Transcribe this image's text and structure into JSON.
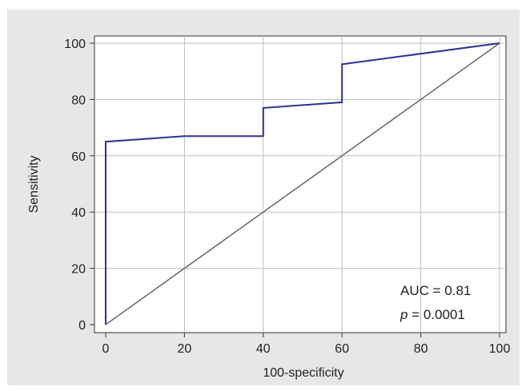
{
  "chart_data": {
    "type": "line",
    "xlabel": "100-specificity",
    "ylabel": "Sensitivity",
    "xlim": [
      0,
      100
    ],
    "ylim": [
      0,
      100
    ],
    "xticks": [
      0,
      20,
      40,
      60,
      80,
      100
    ],
    "yticks": [
      0,
      20,
      40,
      60,
      80,
      100
    ],
    "grid": true,
    "series": [
      {
        "color": "#2e3192",
        "points": [
          [
            0,
            0
          ],
          [
            0,
            65
          ],
          [
            20,
            67
          ],
          [
            40,
            67
          ],
          [
            40,
            77
          ],
          [
            60,
            79
          ],
          [
            60,
            92.5
          ],
          [
            100,
            100
          ]
        ]
      },
      {
        "color": "#6d6e71",
        "points": [
          [
            0,
            0
          ],
          [
            100,
            100
          ]
        ]
      }
    ],
    "annotations": {
      "auc": "AUC = 0.81",
      "p_symbol": "p",
      "p_value": " = 0.0001"
    }
  },
  "colors": {
    "background": "#e6e7e8",
    "plot_area": "#ffffff",
    "grid": "#bcbec0",
    "roc_curve": "#2e3192",
    "reference_line": "#6d6e71"
  }
}
